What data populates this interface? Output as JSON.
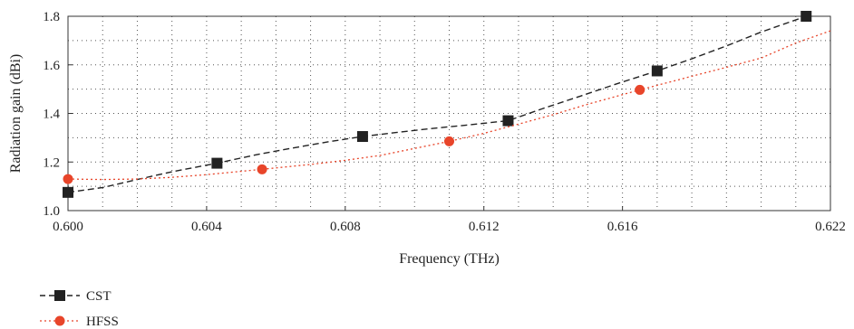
{
  "chart_data": {
    "type": "line",
    "title": "",
    "xlabel": "Frequency (THz)",
    "ylabel": "Radiation gain (dBi)",
    "xlim": [
      0.6,
      0.622
    ],
    "ylim": [
      1.0,
      1.8
    ],
    "x_ticks": [
      0.6,
      0.604,
      0.608,
      0.612,
      0.616,
      0.622
    ],
    "x_tick_labels": [
      "0.600",
      "0.604",
      "0.608",
      "0.612",
      "0.616",
      "0.622"
    ],
    "y_ticks": [
      1.0,
      1.2,
      1.4,
      1.6,
      1.8
    ],
    "y_tick_labels": [
      "1.0",
      "1.2",
      "1.4",
      "1.6",
      "1.8"
    ],
    "grid": true,
    "legend_position": "bottom-left, below plot",
    "series": [
      {
        "name": "CST",
        "color": "#222222",
        "line_style": "dashed",
        "marker": "square",
        "x": [
          0.6,
          0.6043,
          0.6085,
          0.6127,
          0.617,
          0.6213
        ],
        "y": [
          1.075,
          1.195,
          1.305,
          1.37,
          1.575,
          1.8
        ],
        "curve_x": [
          0.6,
          0.601,
          0.602,
          0.603,
          0.6043,
          0.6055,
          0.6065,
          0.6075,
          0.6085,
          0.6095,
          0.6105,
          0.6115,
          0.6127,
          0.6137,
          0.6148,
          0.6159,
          0.617,
          0.618,
          0.619,
          0.62,
          0.6213
        ],
        "curve_y": [
          1.075,
          1.095,
          1.128,
          1.16,
          1.195,
          1.232,
          1.258,
          1.283,
          1.305,
          1.322,
          1.338,
          1.352,
          1.37,
          1.42,
          1.472,
          1.525,
          1.575,
          1.625,
          1.678,
          1.735,
          1.8
        ]
      },
      {
        "name": "HFSS",
        "color": "#e8452a",
        "line_style": "dotted",
        "marker": "circle",
        "x": [
          0.6,
          0.6056,
          0.611,
          0.6165
        ],
        "y": [
          1.13,
          1.17,
          1.285,
          1.497
        ],
        "curve_x": [
          0.6,
          0.601,
          0.602,
          0.603,
          0.604,
          0.6056,
          0.607,
          0.608,
          0.609,
          0.611,
          0.612,
          0.613,
          0.614,
          0.615,
          0.6165,
          0.618,
          0.619,
          0.62,
          0.621,
          0.622
        ],
        "curve_y": [
          1.13,
          1.128,
          1.13,
          1.137,
          1.148,
          1.17,
          1.19,
          1.207,
          1.227,
          1.285,
          1.318,
          1.356,
          1.395,
          1.438,
          1.497,
          1.553,
          1.59,
          1.628,
          1.69,
          1.74
        ]
      }
    ]
  }
}
